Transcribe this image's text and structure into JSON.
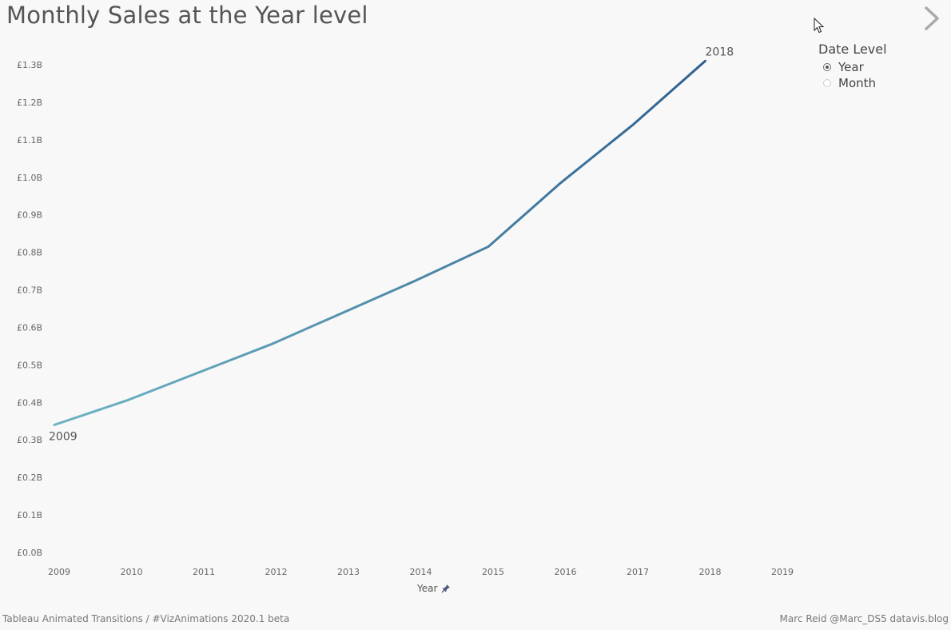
{
  "title": "Monthly Sales at the Year level",
  "controls": {
    "date_level_title": "Date Level",
    "options": [
      {
        "label": "Year",
        "selected": true
      },
      {
        "label": "Month",
        "selected": false
      }
    ]
  },
  "icons": {
    "next": "chevron-right-icon",
    "cursor": "mouse-pointer-icon",
    "pin": "pin-icon"
  },
  "footer": {
    "left": "Tableau Animated Transitions / #VizAnimations 2020.1 beta",
    "right": "Marc Reid  @Marc_DS5  datavis.blog"
  },
  "chart_data": {
    "type": "line",
    "title": "Monthly Sales at the Year level",
    "xlabel": "Year",
    "ylabel": "",
    "x": [
      2009,
      2010,
      2011,
      2012,
      2013,
      2014,
      2015,
      2016,
      2017,
      2018
    ],
    "series": [
      {
        "values": [
          0.34,
          0.405,
          0.48,
          0.555,
          0.64,
          0.725,
          0.815,
          0.985,
          1.14,
          1.31
        ]
      }
    ],
    "x_ticks": [
      "2009",
      "2010",
      "2011",
      "2012",
      "2013",
      "2014",
      "2015",
      "2016",
      "2017",
      "2018",
      "2019"
    ],
    "y_ticks": [
      "£0.0B",
      "£0.1B",
      "£0.2B",
      "£0.3B",
      "£0.4B",
      "£0.5B",
      "£0.6B",
      "£0.7B",
      "£0.8B",
      "£0.9B",
      "£1.0B",
      "£1.1B",
      "£1.2B",
      "£1.3B"
    ],
    "xlim": [
      2009,
      2019
    ],
    "ylim": [
      0,
      1.3
    ],
    "annotations": [
      {
        "text": "2009",
        "x": 2009,
        "y": 0.34
      },
      {
        "text": "2018",
        "x": 2018,
        "y": 1.31
      }
    ],
    "grid": false,
    "color_start": "#6fb5c4",
    "color_end": "#2e5f8e"
  }
}
